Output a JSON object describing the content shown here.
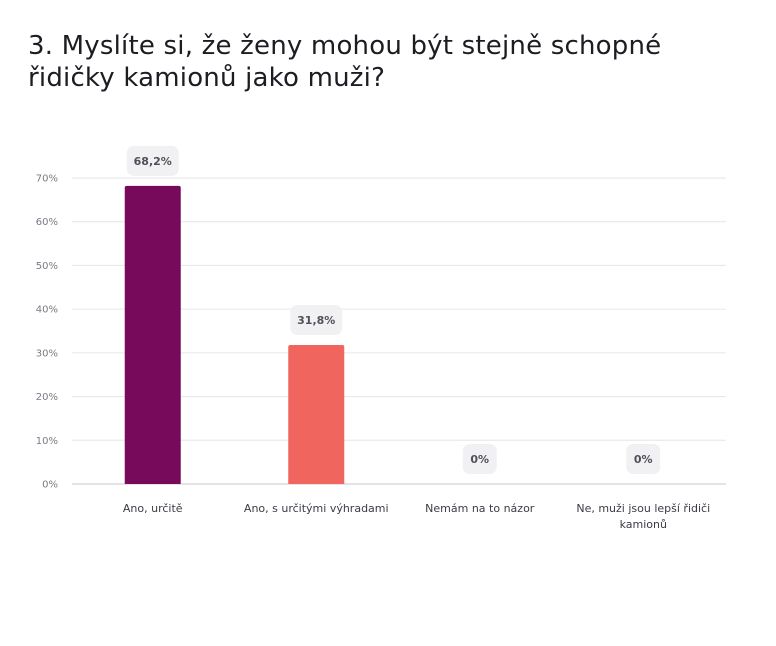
{
  "chart_data": {
    "type": "bar",
    "title": "3. Myslíte si, že ženy mohou být stejně schopné řidičky kamionů jako muži?",
    "categories": [
      [
        "Ano, určitě"
      ],
      [
        "Ano, s určitými výhradami"
      ],
      [
        "Nemám na to názor"
      ],
      [
        "Ne, muži jsou lepší řidiči",
        "kamionů"
      ]
    ],
    "values": [
      68.2,
      31.8,
      0,
      0
    ],
    "data_labels": [
      "68,2%",
      "31,8%",
      "0%",
      "0%"
    ],
    "bar_colors": [
      "#780a5c",
      "#f0665f",
      "#cccccc",
      "#cccccc"
    ],
    "ylim": [
      0,
      70
    ],
    "yticks": [
      0,
      10,
      20,
      30,
      40,
      50,
      60,
      70
    ],
    "ytick_labels": [
      "0%",
      "10%",
      "20%",
      "30%",
      "40%",
      "50%",
      "60%",
      "70%"
    ],
    "grid": true,
    "legend": "none"
  }
}
